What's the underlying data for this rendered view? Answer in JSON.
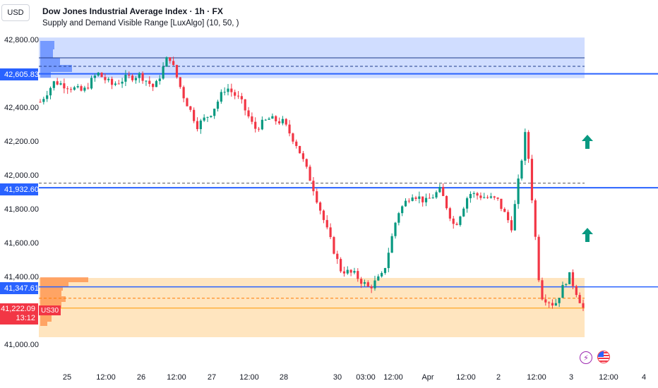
{
  "header": {
    "currency": "USD",
    "title": "Dow Jones Industrial Average Index · 1h · FX",
    "indicator": "Supply and Demand Visible Range [LuxAlgo] (10, 50, )"
  },
  "price_axis": {
    "ticks": [
      "42,800.00",
      "42,400.00",
      "42,200.00",
      "42,000.00",
      "41,800.00",
      "41,600.00",
      "41,400.00",
      "41,000.00"
    ]
  },
  "time_axis": {
    "ticks": [
      "25",
      "12:00",
      "26",
      "12:00",
      "27",
      "12:00",
      "28",
      "30",
      "03:00",
      "12:00",
      "Apr",
      "12:00",
      "2",
      "12:00",
      "3",
      "12:00",
      "4"
    ]
  },
  "price_tags": {
    "supply_level": "42,605.83",
    "mid_level": "41,932.60",
    "demand_level": "41,347.61",
    "last_price": "41,222.09",
    "countdown": "13:12",
    "symbol": "US30"
  },
  "event_icons": [
    "lightning-event",
    "us-flag-event"
  ],
  "colors": {
    "up": "#089981",
    "down": "#f23645",
    "supply_zone": "rgba(41,98,255,0.22)",
    "demand_zone": "rgba(255,152,0,0.25)",
    "level_line": "#2962ff",
    "last_price_line": "#ff9800",
    "arrow": "#089981"
  },
  "chart_data": {
    "type": "candlestick",
    "y_range": [
      41000,
      42800
    ],
    "levels": {
      "supply_zone": [
        42580,
        42820
      ],
      "supply_mid": 42700,
      "supply_avg": 42650,
      "supply_level": 42605.83,
      "equilibrium_upper": 41960,
      "mid_level": 41932.6,
      "demand_zone": [
        41050,
        41400
      ],
      "demand_level": 41347.61,
      "demand_avg": 41280,
      "last_price": 41222.09
    },
    "signals": [
      {
        "type": "up-arrow",
        "price": 42200
      },
      {
        "type": "up-arrow",
        "price": 41650
      }
    ],
    "waypoints": [
      42440,
      42560,
      42530,
      42500,
      42610,
      42540,
      42580,
      42600,
      42520,
      42720,
      42480,
      42300,
      42380,
      42530,
      42450,
      42280,
      42340,
      42320,
      42180,
      41960,
      41700,
      41450,
      41420,
      41340,
      41420,
      41780,
      41900,
      41850,
      41920,
      41700,
      41900,
      41880,
      41860,
      41700,
      42280,
      41300,
      41240,
      41420,
      41222
    ]
  }
}
